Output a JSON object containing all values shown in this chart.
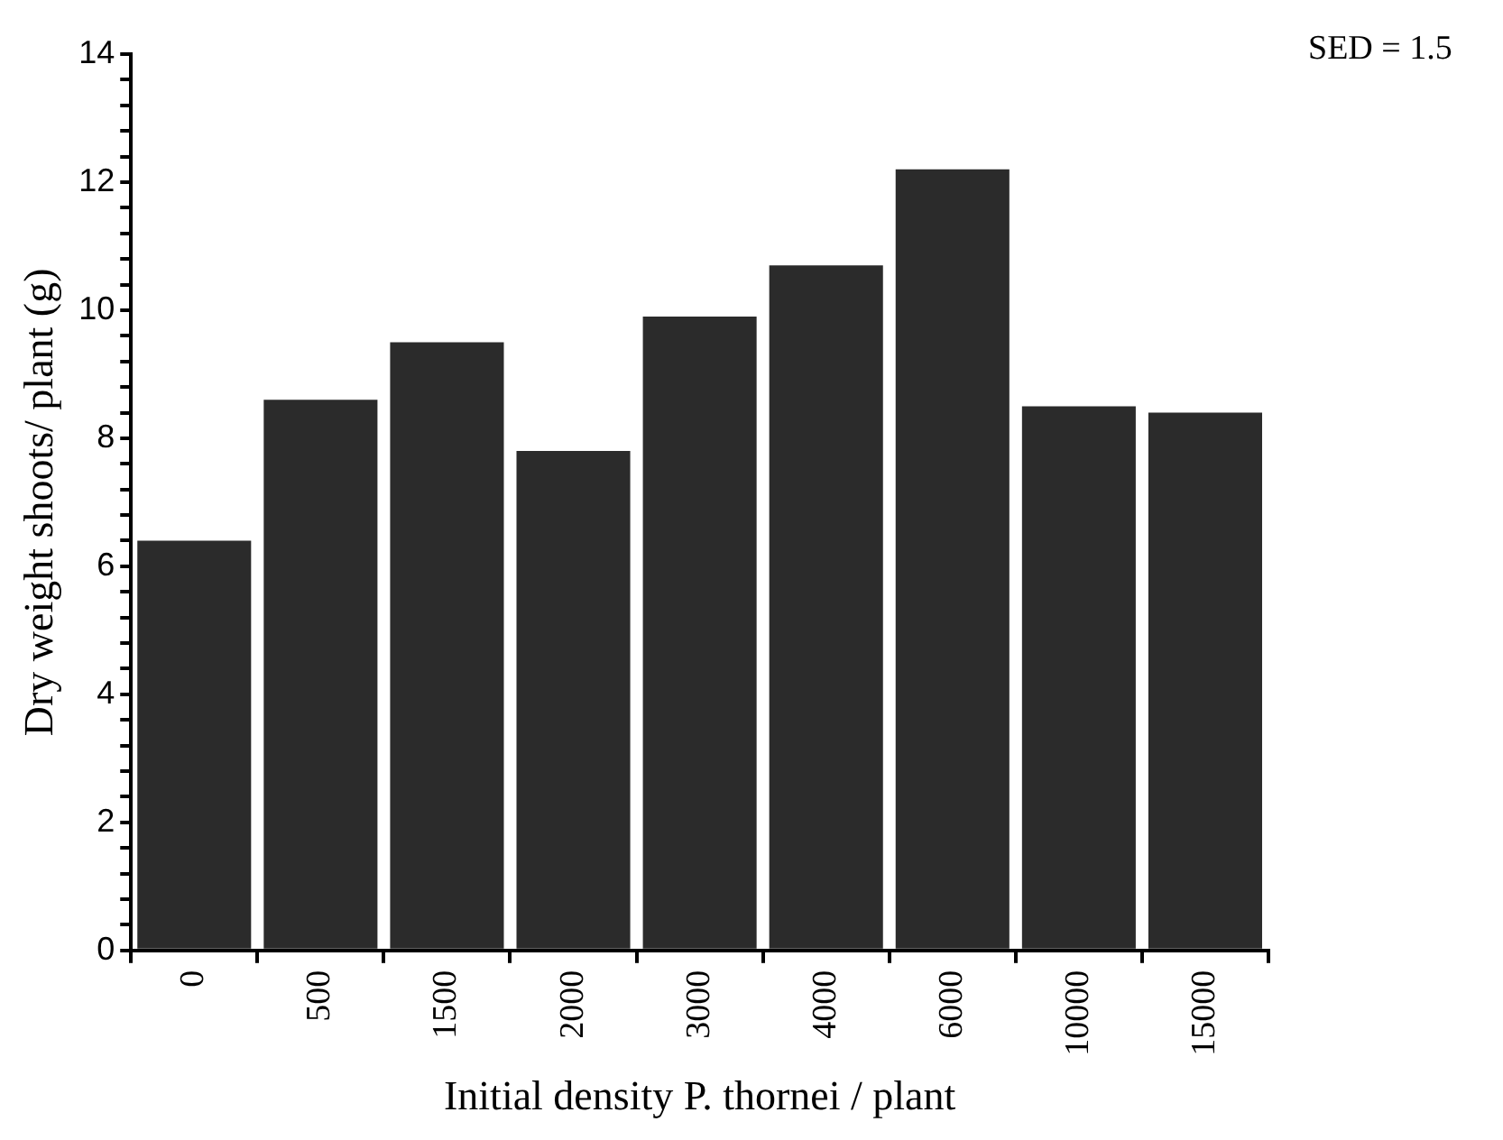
{
  "chart_data": {
    "type": "bar",
    "xlabel": "Initial density P. thornei / plant",
    "ylabel": "Dry weight shoots/ plant (g)",
    "categories": [
      "0",
      "500",
      "1500",
      "2000",
      "3000",
      "4000",
      "6000",
      "10000",
      "15000"
    ],
    "values": [
      6.4,
      8.6,
      9.5,
      7.8,
      9.9,
      10.7,
      12.2,
      8.5,
      8.4
    ],
    "color": "#2b2b2b",
    "ylim": [
      0,
      14
    ],
    "yticks": [
      0,
      {
        "value": 0.4,
        "label": null
      },
      {
        "value": 0.8,
        "label": null
      },
      {
        "value": 1.2,
        "label": null
      },
      {
        "value": 1.6,
        "label": null
      },
      2,
      {
        "value": 2.4,
        "label": null
      },
      {
        "value": 2.8,
        "label": null
      },
      {
        "value": 3.2,
        "label": null
      },
      {
        "value": 3.6,
        "label": null
      },
      4,
      {
        "value": 4.4,
        "label": null
      },
      {
        "value": 4.8,
        "label": null
      },
      {
        "value": 5.2,
        "label": null
      },
      {
        "value": 5.6,
        "label": null
      },
      6,
      {
        "value": 6.4,
        "label": null
      },
      {
        "value": 6.8,
        "label": null
      },
      {
        "value": 7.2,
        "label": null
      },
      {
        "value": 7.6,
        "label": null
      },
      8,
      {
        "value": 8.4,
        "label": null
      },
      {
        "value": 8.8,
        "label": null
      },
      {
        "value": 9.2,
        "label": null
      },
      {
        "value": 9.6,
        "label": null
      },
      10,
      {
        "value": 10.4,
        "label": null
      },
      {
        "value": 10.8,
        "label": null
      },
      {
        "value": 11.2,
        "label": null
      },
      {
        "value": 11.6,
        "label": null
      },
      12,
      {
        "value": 12.4,
        "label": null
      },
      {
        "value": 12.8,
        "label": null
      },
      {
        "value": 13.2,
        "label": null
      },
      {
        "value": 13.6,
        "label": null
      },
      14
    ],
    "grid": false,
    "annotations": [
      "SED = 1.5"
    ]
  }
}
